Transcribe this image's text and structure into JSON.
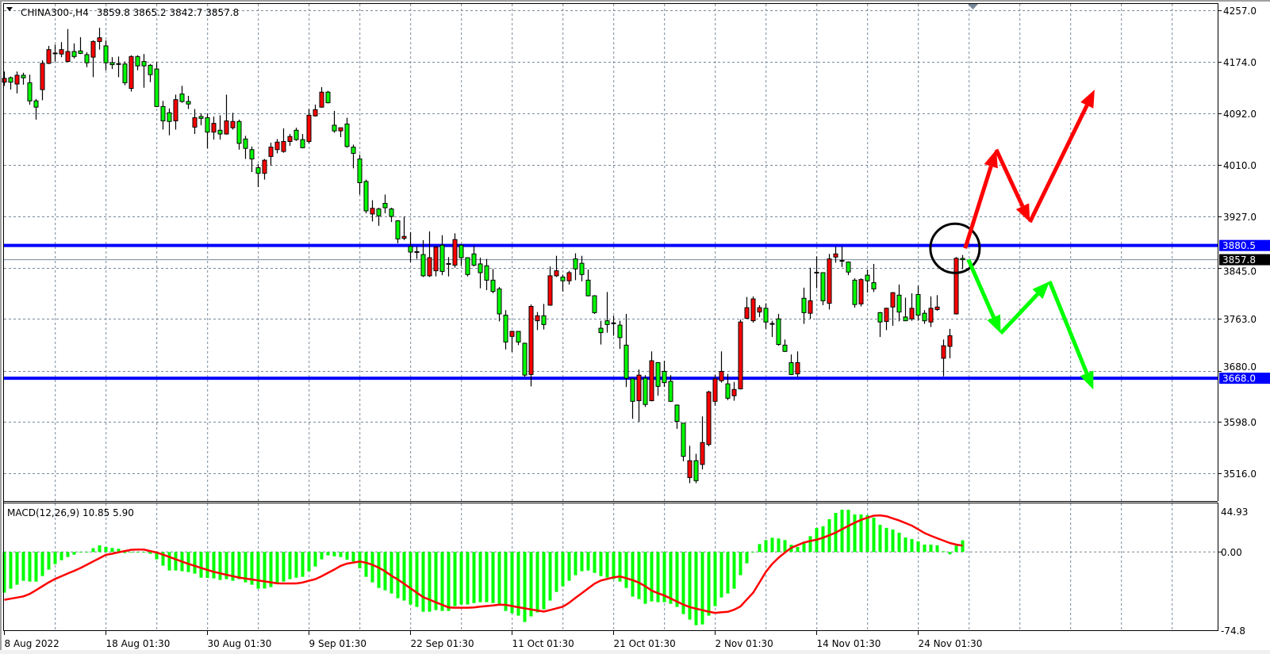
{
  "header": {
    "symbol_timeframe": "CHINA300-,H4",
    "ohlc_text": "3859.8 3865.2 3842.7 3857.8"
  },
  "colors": {
    "bull_candle": "#ff0000",
    "bear_candle": "#00ff00",
    "level_line": "#0000ff",
    "bid_line": "#778899",
    "grid": "#778899",
    "macd_histogram": "#00ff00",
    "macd_signal": "#ff0000",
    "arrow_up": "#ff0000",
    "arrow_down": "#00ff00",
    "circle": "#000000"
  },
  "chart_data": [
    {
      "type": "candlestick",
      "title": "CHINA300-,H4",
      "last_ohlc": {
        "open": 3859.8,
        "high": 3865.2,
        "low": 3842.7,
        "close": 3857.8
      },
      "x_tick_labels": [
        "8 Aug 2022",
        "18 Aug 01:30",
        "30 Aug 01:30",
        "9 Sep 01:30",
        "22 Sep 01:30",
        "11 Oct 01:30",
        "21 Oct 01:30",
        "2 Nov 01:30",
        "14 Nov 01:30",
        "24 Nov 01:30"
      ],
      "x_tick_bar_index": [
        0,
        16,
        32,
        48,
        64,
        80,
        96,
        112,
        128,
        144
      ],
      "y_tick_labels": [
        "4257.0",
        "4174.0",
        "4092.0",
        "4010.0",
        "3927.0",
        "3845.0",
        "3763.0",
        "3680.0",
        "3598.0",
        "3516.0"
      ],
      "ylim": [
        3472,
        4268
      ],
      "grid": true,
      "horizontal_levels": [
        {
          "price": 3880.5,
          "label": "3880.5"
        },
        {
          "price": 3668.0,
          "label": "3668.0"
        }
      ],
      "current_price": {
        "price": 3857.8,
        "label": "3857.8"
      },
      "candles_ohlc": [
        [
          4142,
          4159,
          4136,
          4148
        ],
        [
          4149,
          4151,
          4130,
          4142
        ],
        [
          4139,
          4159,
          4124,
          4153
        ],
        [
          4153,
          4157,
          4138,
          4149
        ],
        [
          4141,
          4154,
          4106,
          4112
        ],
        [
          4112,
          4115,
          4082,
          4102
        ],
        [
          4130,
          4177,
          4113,
          4172
        ],
        [
          4172,
          4200,
          4171,
          4194
        ],
        [
          4188,
          4202,
          4175,
          4187
        ],
        [
          4187,
          4206,
          4182,
          4194
        ],
        [
          4175,
          4227,
          4174,
          4191
        ],
        [
          4191,
          4204,
          4180,
          4183
        ],
        [
          4192,
          4214,
          4187,
          4188
        ],
        [
          4186,
          4190,
          4166,
          4173
        ],
        [
          4182,
          4209,
          4150,
          4207
        ],
        [
          4207,
          4229,
          4194,
          4213
        ],
        [
          4200,
          4209,
          4161,
          4173
        ],
        [
          4173,
          4182,
          4163,
          4170
        ],
        [
          4171,
          4183,
          4150,
          4171
        ],
        [
          4171,
          4175,
          4137,
          4141
        ],
        [
          4132,
          4185,
          4127,
          4183
        ],
        [
          4183,
          4185,
          4161,
          4168
        ],
        [
          4175,
          4187,
          4133,
          4168
        ],
        [
          4169,
          4171,
          4142,
          4154
        ],
        [
          4163,
          4174,
          4102,
          4103
        ],
        [
          4103,
          4112,
          4066,
          4080
        ],
        [
          4093,
          4100,
          4057,
          4079
        ],
        [
          4080,
          4122,
          4066,
          4114
        ],
        [
          4123,
          4136,
          4109,
          4111
        ],
        [
          4111,
          4120,
          4099,
          4107
        ],
        [
          4070,
          4099,
          4059,
          4085
        ],
        [
          4087,
          4092,
          4073,
          4084
        ],
        [
          4085,
          4092,
          4036,
          4062
        ],
        [
          4062,
          4087,
          4050,
          4076
        ],
        [
          4065,
          4089,
          4050,
          4059
        ],
        [
          4059,
          4122,
          4058,
          4080
        ],
        [
          4069,
          4093,
          4066,
          4079
        ],
        [
          4079,
          4082,
          4034,
          4044
        ],
        [
          4051,
          4056,
          4019,
          4036
        ],
        [
          4034,
          4039,
          3998,
          4019
        ],
        [
          4005,
          4011,
          3974,
          3996
        ],
        [
          3996,
          4019,
          3986,
          4017
        ],
        [
          4023,
          4045,
          4008,
          4038
        ],
        [
          4034,
          4051,
          4028,
          4046
        ],
        [
          4031,
          4068,
          4029,
          4047
        ],
        [
          4047,
          4059,
          4040,
          4055
        ],
        [
          4065,
          4069,
          4048,
          4050
        ],
        [
          4050,
          4059,
          4036,
          4037
        ],
        [
          4047,
          4099,
          4044,
          4089
        ],
        [
          4088,
          4106,
          4087,
          4098
        ],
        [
          4102,
          4134,
          4101,
          4126
        ],
        [
          4126,
          4128,
          4108,
          4109
        ],
        [
          4073,
          4096,
          4061,
          4064
        ],
        [
          4064,
          4069,
          4054,
          4069
        ],
        [
          4075,
          4085,
          4037,
          4039
        ],
        [
          4038,
          4042,
          4004,
          4028
        ],
        [
          4019,
          4026,
          3962,
          3981
        ],
        [
          3983,
          3986,
          3932,
          3936
        ],
        [
          3931,
          3953,
          3919,
          3940
        ],
        [
          3939,
          3941,
          3912,
          3928
        ],
        [
          3948,
          3962,
          3932,
          3941
        ],
        [
          3939,
          3941,
          3918,
          3927
        ],
        [
          3920,
          3921,
          3884,
          3891
        ],
        [
          3892,
          3927,
          3889,
          3895
        ],
        [
          3879,
          3902,
          3854,
          3870
        ],
        [
          3870,
          3879,
          3859,
          3869
        ],
        [
          3866,
          3889,
          3830,
          3832
        ],
        [
          3832,
          3903,
          3830,
          3861
        ],
        [
          3840,
          3880,
          3831,
          3878
        ],
        [
          3881,
          3897,
          3833,
          3839
        ],
        [
          3851,
          3862,
          3831,
          3851
        ],
        [
          3849,
          3900,
          3845,
          3890
        ],
        [
          3881,
          3882,
          3848,
          3861
        ],
        [
          3861,
          3861,
          3831,
          3834
        ],
        [
          3867,
          3880,
          3847,
          3849
        ],
        [
          3851,
          3861,
          3812,
          3837
        ],
        [
          3848,
          3859,
          3809,
          3825
        ],
        [
          3825,
          3843,
          3804,
          3807
        ],
        [
          3811,
          3814,
          3759,
          3771
        ],
        [
          3769,
          3777,
          3714,
          3726
        ],
        [
          3735,
          3744,
          3710,
          3743
        ],
        [
          3743,
          3743,
          3721,
          3726
        ],
        [
          3724,
          3725,
          3670,
          3673
        ],
        [
          3674,
          3786,
          3655,
          3783
        ],
        [
          3760,
          3774,
          3745,
          3768
        ],
        [
          3768,
          3787,
          3746,
          3754
        ],
        [
          3785,
          3847,
          3784,
          3832
        ],
        [
          3832,
          3864,
          3830,
          3840
        ],
        [
          3830,
          3834,
          3807,
          3824
        ],
        [
          3824,
          3840,
          3818,
          3837
        ],
        [
          3859,
          3868,
          3825,
          3843
        ],
        [
          3852,
          3864,
          3823,
          3834
        ],
        [
          3825,
          3842,
          3799,
          3800
        ],
        [
          3800,
          3801,
          3771,
          3773
        ],
        [
          3748,
          3760,
          3722,
          3741
        ],
        [
          3760,
          3806,
          3741,
          3754
        ],
        [
          3756,
          3768,
          3736,
          3756
        ],
        [
          3753,
          3760,
          3715,
          3733
        ],
        [
          3721,
          3771,
          3654,
          3668
        ],
        [
          3667,
          3667,
          3603,
          3631
        ],
        [
          3632,
          3682,
          3598,
          3673
        ],
        [
          3668,
          3673,
          3622,
          3626
        ],
        [
          3632,
          3711,
          3631,
          3696
        ],
        [
          3693,
          3694,
          3640,
          3655
        ],
        [
          3679,
          3696,
          3654,
          3661
        ],
        [
          3663,
          3673,
          3630,
          3631
        ],
        [
          3625,
          3626,
          3587,
          3599
        ],
        [
          3596,
          3596,
          3535,
          3543
        ],
        [
          3509,
          3560,
          3500,
          3536
        ],
        [
          3536,
          3547,
          3500,
          3504
        ],
        [
          3530,
          3607,
          3522,
          3565
        ],
        [
          3562,
          3648,
          3559,
          3646
        ],
        [
          3631,
          3674,
          3624,
          3667
        ],
        [
          3664,
          3711,
          3661,
          3679
        ],
        [
          3659,
          3675,
          3633,
          3636
        ],
        [
          3640,
          3662,
          3632,
          3650
        ],
        [
          3651,
          3762,
          3650,
          3758
        ],
        [
          3764,
          3798,
          3763,
          3781
        ],
        [
          3760,
          3799,
          3757,
          3795
        ],
        [
          3774,
          3785,
          3766,
          3781
        ],
        [
          3780,
          3788,
          3747,
          3758
        ],
        [
          3755,
          3760,
          3734,
          3754
        ],
        [
          3763,
          3771,
          3720,
          3722
        ],
        [
          3721,
          3730,
          3710,
          3711
        ],
        [
          3693,
          3706,
          3673,
          3674
        ],
        [
          3675,
          3711,
          3670,
          3693
        ],
        [
          3796,
          3813,
          3755,
          3773
        ],
        [
          3772,
          3845,
          3763,
          3792
        ],
        [
          3837,
          3863,
          3812,
          3837
        ],
        [
          3837,
          3837,
          3785,
          3792
        ],
        [
          3788,
          3867,
          3778,
          3859
        ],
        [
          3862,
          3879,
          3853,
          3867
        ],
        [
          3856,
          3879,
          3846,
          3856
        ],
        [
          3854,
          3855,
          3833,
          3838
        ],
        [
          3825,
          3828,
          3781,
          3786
        ],
        [
          3787,
          3828,
          3783,
          3826
        ],
        [
          3833,
          3842,
          3805,
          3824
        ],
        [
          3821,
          3851,
          3806,
          3811
        ],
        [
          3773,
          3774,
          3734,
          3758
        ],
        [
          3759,
          3781,
          3745,
          3780
        ],
        [
          3782,
          3806,
          3752,
          3805
        ],
        [
          3801,
          3818,
          3759,
          3774
        ],
        [
          3766,
          3797,
          3760,
          3760
        ],
        [
          3763,
          3804,
          3760,
          3780
        ],
        [
          3802,
          3816,
          3760,
          3769
        ],
        [
          3772,
          3777,
          3755,
          3760
        ],
        [
          3758,
          3799,
          3750,
          3780
        ],
        [
          3778,
          3801,
          3776,
          3782
        ],
        [
          3700,
          3730,
          3671,
          3720
        ],
        [
          3719,
          3747,
          3700,
          3736
        ],
        [
          3771,
          3862,
          3770,
          3860
        ],
        [
          3859.8,
          3865.2,
          3842.7,
          3857.8
        ]
      ],
      "drawn_objects": {
        "circle_center": {
          "bar": 149.8,
          "price": 3876
        },
        "arrows_up_scenario": [
          [
            151.4,
            3876
          ],
          [
            156.3,
            4034
          ],
          [
            161.6,
            3918
          ],
          [
            171.8,
            4130
          ]
        ],
        "arrows_down_scenario": [
          [
            151.9,
            3858
          ],
          [
            157.0,
            3740
          ],
          [
            164.7,
            3823
          ],
          [
            171.6,
            3650
          ]
        ]
      }
    },
    {
      "type": "bar",
      "title": "MACD(12,26,9) 10.85 5.90",
      "indicator": "MACD",
      "params": [
        12,
        26,
        9
      ],
      "last_main": 10.85,
      "last_signal": 5.9,
      "y_tick_labels": [
        "44.93",
        "0.00",
        "-74.8"
      ],
      "ylim": [
        -74.8,
        44.93
      ],
      "main_histogram": [
        -38,
        -34.3,
        -30.6,
        -26.9,
        -27.7,
        -27.7,
        -22.5,
        -16.5,
        -11.4,
        -7.7,
        -4.7,
        -2.5,
        -0.2,
        0,
        3.5,
        6.2,
        4.7,
        3.7,
        3,
        -1,
        0,
        0,
        0,
        -1.7,
        -6.9,
        -12.8,
        -17.3,
        -17.3,
        -18,
        -18.8,
        -20.2,
        -24,
        -24.2,
        -24.7,
        -26.2,
        -25.4,
        -26.9,
        -25.4,
        -28.4,
        -30.6,
        -34.3,
        -34.1,
        -32.8,
        -29.1,
        -27.7,
        -25.4,
        -24,
        -23.2,
        -18,
        -13.6,
        -6.9,
        -3.2,
        -4,
        -4.7,
        -7.2,
        -9.1,
        -15.3,
        -23.2,
        -28.4,
        -33.6,
        -35.8,
        -38.8,
        -43.2,
        -45.4,
        -49.1,
        -51.4,
        -55.8,
        -55.8,
        -54.3,
        -55.1,
        -55.1,
        -50.6,
        -49.1,
        -49.1,
        -47.7,
        -46.9,
        -46.9,
        -47.7,
        -48.4,
        -55.1,
        -57.3,
        -59.5,
        -65.4,
        -60.2,
        -56.5,
        -53.6,
        -45.4,
        -37.3,
        -32.1,
        -26.9,
        -21.7,
        -18,
        -17.3,
        -19.5,
        -22.5,
        -24,
        -25.4,
        -27.7,
        -33.6,
        -41.7,
        -44,
        -48.4,
        -46.2,
        -46.9,
        -46.9,
        -48.4,
        -51.4,
        -58,
        -63.2,
        -68.4,
        -67.7,
        -59.5,
        -50.6,
        -42.5,
        -38.8,
        -34.3,
        -21.7,
        -10.6,
        -0.5,
        7.4,
        11.1,
        13.3,
        12.6,
        11.1,
        6.7,
        4.7,
        9.6,
        14.8,
        22.5,
        24,
        30.6,
        36.5,
        39.5,
        39.5,
        35.1,
        35.1,
        34.3,
        32.1,
        25.4,
        22.5,
        21,
        18,
        13.6,
        12.1,
        9.9,
        6.9,
        6.9,
        6.2,
        0.7,
        -2.2,
        5.9,
        10.85
      ],
      "signal": [
        -44.7,
        -43.6,
        -42.6,
        -41.5,
        -39.2,
        -35.6,
        -32,
        -28.4,
        -25.2,
        -22.7,
        -20.1,
        -17.6,
        -15,
        -11.9,
        -8.8,
        -5.8,
        -2.7,
        -1.6,
        -0.3,
        0.9,
        2.1,
        2.2,
        2.2,
        0.8,
        -0.5,
        -2.5,
        -4.7,
        -6.8,
        -9,
        -11.1,
        -13,
        -14.9,
        -16.8,
        -18.5,
        -19.9,
        -21.3,
        -22.6,
        -23.9,
        -24.8,
        -25.7,
        -26.6,
        -27.5,
        -28.4,
        -29.3,
        -29.4,
        -29.4,
        -29.4,
        -28.5,
        -26.9,
        -25.4,
        -22.7,
        -19.5,
        -16.4,
        -13,
        -10.9,
        -9.9,
        -8.9,
        -10,
        -12,
        -14.7,
        -18.1,
        -22.2,
        -25.7,
        -29.8,
        -34,
        -38.1,
        -42.2,
        -44.6,
        -47,
        -49.4,
        -51.8,
        -52.1,
        -52.1,
        -52.1,
        -51.8,
        -51.1,
        -50.5,
        -49.9,
        -49.2,
        -49.4,
        -50.5,
        -51.6,
        -52.7,
        -53.7,
        -54.7,
        -55.7,
        -54.3,
        -52.7,
        -51.1,
        -47.5,
        -42.8,
        -38.5,
        -34,
        -29.6,
        -26.7,
        -25.2,
        -23.7,
        -22.8,
        -24.5,
        -26.3,
        -28.7,
        -32,
        -36.1,
        -38.5,
        -40.7,
        -43.5,
        -46.4,
        -49.2,
        -51.5,
        -53,
        -54.4,
        -55.8,
        -56.9,
        -56.4,
        -55.9,
        -53.9,
        -50.9,
        -44.4,
        -38,
        -28.4,
        -18.5,
        -11.1,
        -5.3,
        -0.5,
        3.9,
        6.4,
        8.8,
        10.3,
        11.5,
        13.3,
        15.6,
        18.1,
        21.3,
        24.4,
        27.3,
        30,
        32.1,
        33.9,
        34.2,
        33.4,
        31.4,
        29.4,
        27,
        24.6,
        21.2,
        17.7,
        15.1,
        12.8,
        10.6,
        8.4,
        6.9,
        5.9
      ]
    }
  ]
}
